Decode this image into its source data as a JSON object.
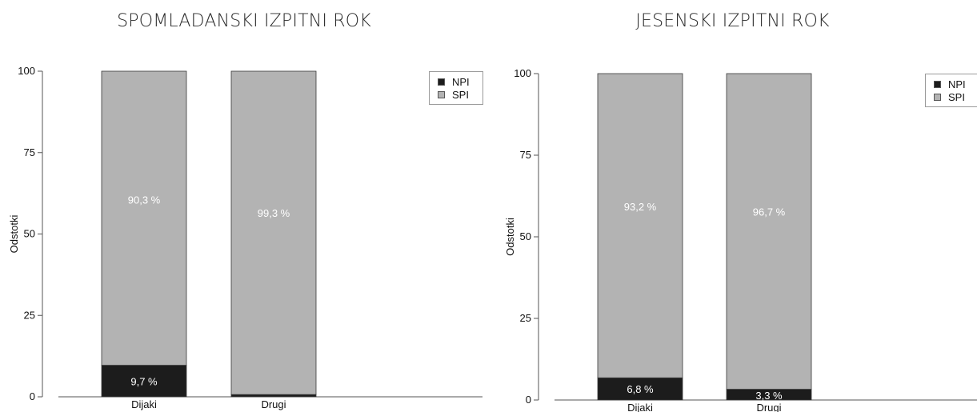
{
  "chart_data": [
    {
      "type": "bar",
      "stacked": true,
      "title": "SPOMLADANSKI IZPITNI ROK",
      "ylabel": "Odstotki",
      "xlabel": "",
      "categories": [
        "Dijaki",
        "Drugi"
      ],
      "series": [
        {
          "name": "NPI",
          "values": [
            9.7,
            0.7
          ],
          "labels": [
            "9,7 %",
            ""
          ],
          "color": "#1c1c1c"
        },
        {
          "name": "SPI",
          "values": [
            90.3,
            99.3
          ],
          "labels": [
            "90,3 %",
            "99,3 %"
          ],
          "color": "#b3b3b3"
        }
      ],
      "ylim": [
        0,
        100
      ],
      "yticks": [
        "0",
        "25",
        "50",
        "75",
        "100"
      ],
      "grid": false,
      "legend_position": "top-right"
    },
    {
      "type": "bar",
      "stacked": true,
      "title": "JESENSKI IZPITNI ROK",
      "ylabel": "Odstotki",
      "xlabel": "",
      "categories": [
        "Dijaki",
        "Drugi"
      ],
      "series": [
        {
          "name": "NPI",
          "values": [
            6.8,
            3.3
          ],
          "labels": [
            "6,8 %",
            "3,3 %"
          ],
          "color": "#1c1c1c"
        },
        {
          "name": "SPI",
          "values": [
            93.2,
            96.7
          ],
          "labels": [
            "93,2 %",
            "96,7 %"
          ],
          "color": "#b3b3b3"
        }
      ],
      "ylim": [
        0,
        100
      ],
      "yticks": [
        "0",
        "25",
        "50",
        "75",
        "100"
      ],
      "grid": false,
      "legend_position": "top-right"
    }
  ]
}
